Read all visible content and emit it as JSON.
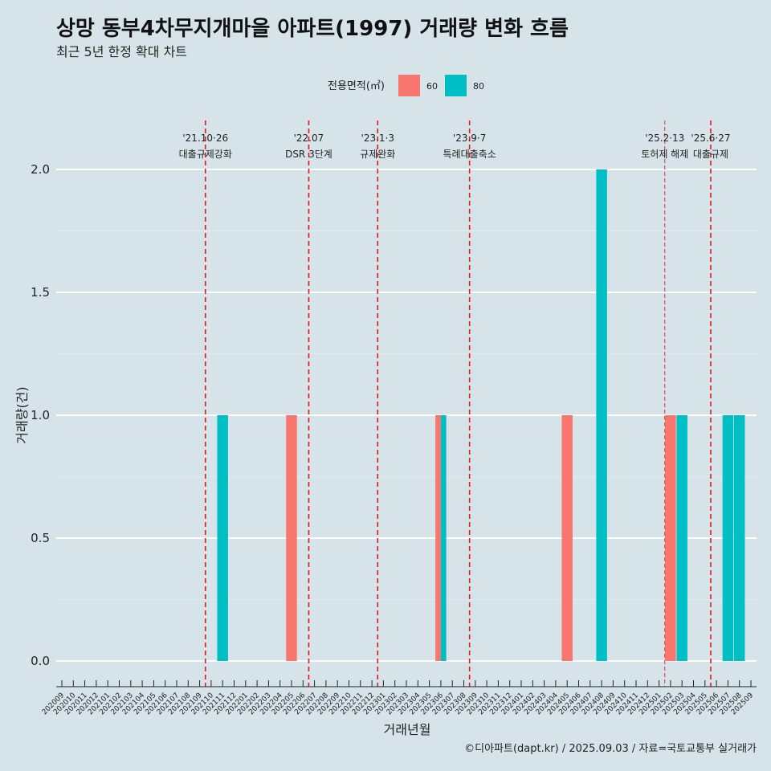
{
  "chart_data": {
    "type": "bar",
    "title": "상망 동부4차무지개마을 아파트(1997) 거래량 변화 흐름",
    "subtitle": "최근 5년 한정 확대 차트",
    "xlabel": "거래년월",
    "ylabel": "거래량(건)",
    "ylim": [
      0,
      2
    ],
    "yticks": [
      "0.0",
      "0.5",
      "1.0",
      "1.5",
      "2.0"
    ],
    "grid": true,
    "legend": {
      "title": "전용면적(㎡)",
      "position": "top",
      "entries": [
        {
          "name": "60",
          "color": "#f8766d"
        },
        {
          "name": "80",
          "color": "#00bfc4"
        }
      ]
    },
    "categories": [
      "202009",
      "202010",
      "202011",
      "202012",
      "202101",
      "202102",
      "202103",
      "202104",
      "202105",
      "202106",
      "202107",
      "202108",
      "202109",
      "202110",
      "202111",
      "202112",
      "202201",
      "202202",
      "202203",
      "202204",
      "202205",
      "202206",
      "202207",
      "202208",
      "202209",
      "202210",
      "202211",
      "202212",
      "202301",
      "202302",
      "202303",
      "202304",
      "202305",
      "202306",
      "202307",
      "202308",
      "202309",
      "202310",
      "202311",
      "202312",
      "202401",
      "202402",
      "202403",
      "202404",
      "202405",
      "202406",
      "202407",
      "202408",
      "202409",
      "202410",
      "202411",
      "202412",
      "202501",
      "202502",
      "202503",
      "202504",
      "202505",
      "202506",
      "202507",
      "202508",
      "202509"
    ],
    "series": [
      {
        "name": "60",
        "color": "#f8766d",
        "points": [
          {
            "x": "202205",
            "y": 1
          },
          {
            "x": "202306",
            "y": 1
          },
          {
            "x": "202405",
            "y": 1
          },
          {
            "x": "202502",
            "y": 1
          }
        ]
      },
      {
        "name": "80",
        "color": "#00bfc4",
        "points": [
          {
            "x": "202111",
            "y": 1
          },
          {
            "x": "202306",
            "y": 1
          },
          {
            "x": "202408",
            "y": 2
          },
          {
            "x": "202503",
            "y": 1
          },
          {
            "x": "202507",
            "y": 1
          },
          {
            "x": "202508",
            "y": 1
          }
        ]
      }
    ],
    "events": [
      {
        "x": "202110",
        "date": "'21.10·26",
        "label": "대출규제강화"
      },
      {
        "x": "202207",
        "date": "'22.07",
        "label": "DSR 3단계"
      },
      {
        "x": "202301",
        "date": "'23.1·3",
        "label": "규제완화"
      },
      {
        "x": "202309",
        "date": "'23.9·7",
        "label": "특례대출축소"
      },
      {
        "x": "202502",
        "date": "'25.2·13",
        "label": "토허제 해제"
      },
      {
        "x": "202506",
        "date": "'25.6·27",
        "label": "대출규제"
      }
    ]
  },
  "caption": "©디아파트(dapt.kr) / 2025.09.03 / 자료=국토교통부 실거래가",
  "colors": {
    "background": "#d6e4ea",
    "grid": "#ffffff",
    "event_line": "#e31a1c"
  }
}
